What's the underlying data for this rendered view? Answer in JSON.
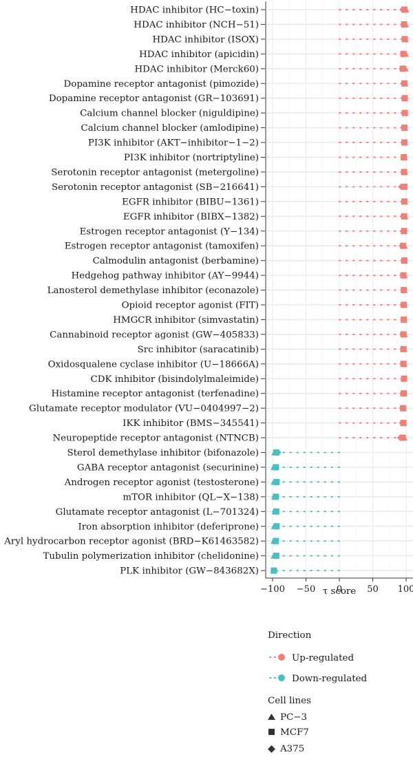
{
  "chart_data": {
    "type": "scatter",
    "title": "",
    "xlabel": "τ score",
    "ylabel": "",
    "xlim": [
      -110,
      105
    ],
    "xticks": [
      -100,
      -50,
      0,
      50,
      100
    ],
    "xtick_labels": [
      "−100",
      "−50",
      "0",
      "50",
      "100"
    ],
    "grid": true,
    "orientation": "horizontal dot/lollipop",
    "categories": [
      "HDAC inhibitor (HC−toxin)",
      "HDAC inhibitor (NCH−51)",
      "HDAC inhibitor (ISOX)",
      "HDAC inhibitor (apicidin)",
      "HDAC inhibitor (Merck60)",
      "Dopamine receptor antagonist (pimozide)",
      "Dopamine receptor antagonist (GR−103691)",
      "Calcium channel blocker (niguldipine)",
      "Calcium channel blocker (amlodipine)",
      "PI3K inhibitor (AKT−inhibitor−1−2)",
      "PI3K inhibitor (nortriptyline)",
      "Serotonin receptor antagonist (metergoline)",
      "Serotonin receptor antagonist (SB−216641)",
      "EGFR inhibitor (BIBU−1361)",
      "EGFR inhibitor (BIBX−1382)",
      "Estrogen receptor antagonist (Y−134)",
      "Estrogen receptor antagonist (tamoxifen)",
      "Calmodulin antagonist (berbamine)",
      "Hedgehog pathway inhibitor (AY−9944)",
      "Lanosterol demethylase inhibitor (econazole)",
      "Opioid receptor agonist (FIT)",
      "HMGCR inhibitor (simvastatin)",
      "Cannabinoid receptor agonist (GW−405833)",
      "Src inhibitor (saracatinib)",
      "Oxidosqualene cyclase inhibitor (U−18666A)",
      "CDK inhibitor (bisindolylmaleimide)",
      "Histamine receptor antagonist (terfenadine)",
      "Glutamate receptor modulator (VU−0404997−2)",
      "IKK inhibitor (BMS−345541)",
      "Neuropeptide receptor antagonist (NTNCB)",
      "Sterol demethylase inhibitor (bifonazole)",
      "GABA receptor antagonist (securinine)",
      "Androgen receptor agonist (testosterone)",
      "mTOR inhibitor (QL−X−138)",
      "Glutamate receptor antagonist (L−701324)",
      "Iron absorption inhibitor (deferiprone)",
      "Aryl hydrocarbon receptor agonist (BRD−K61463582)",
      "Tubulin polymerization inhibitor (chelidonine)",
      "PLK inhibitor (GW−843682X)"
    ],
    "direction": [
      "Up",
      "Up",
      "Up",
      "Up",
      "Up",
      "Up",
      "Up",
      "Up",
      "Up",
      "Up",
      "Up",
      "Up",
      "Up",
      "Up",
      "Up",
      "Up",
      "Up",
      "Up",
      "Up",
      "Up",
      "Up",
      "Up",
      "Up",
      "Up",
      "Up",
      "Up",
      "Up",
      "Up",
      "Up",
      "Up",
      "Down",
      "Down",
      "Down",
      "Down",
      "Down",
      "Down",
      "Down",
      "Down",
      "Down"
    ],
    "series": [
      {
        "name": "PC−3",
        "shape": "triangle",
        "values": [
          99.8,
          99.5,
          99.0,
          99.3,
          99.0,
          98.5,
          98.0,
          98.5,
          98.0,
          98.0,
          97.5,
          98.0,
          96.5,
          98.0,
          98.5,
          96.5,
          97.5,
          97.0,
          97.5,
          97.0,
          97.0,
          96.5,
          97.5,
          97.0,
          97.0,
          96.5,
          95.5,
          96.0,
          95.5,
          97.0,
          -97.0,
          -98.0,
          -98.0,
          -97.0,
          -96.5,
          -97.5,
          -98.0,
          -98.0,
          -98.5
        ]
      },
      {
        "name": "MCF7",
        "shape": "square",
        "values": [
          97.5,
          97.0,
          98.0,
          96.0,
          95.0,
          97.5,
          98.0,
          98.0,
          97.5,
          97.5,
          96.5,
          97.0,
          97.5,
          97.5,
          97.0,
          97.0,
          95.5,
          97.5,
          96.0,
          96.5,
          96.5,
          96.5,
          96.0,
          96.0,
          96.0,
          97.0,
          96.5,
          95.5,
          96.0,
          95.0,
          -94.5,
          -95.0,
          -94.0,
          -95.0,
          -94.5,
          -94.0,
          -95.0,
          -94.5,
          -98.0
        ]
      },
      {
        "name": "A375",
        "shape": "diamond",
        "values": [
          95.0,
          96.0,
          96.5,
          95.5,
          94.0,
          96.0,
          96.5,
          96.5,
          96.0,
          96.5,
          97.0,
          96.0,
          93.0,
          96.0,
          95.5,
          95.5,
          94.0,
          96.0,
          95.0,
          96.0,
          95.5,
          96.0,
          95.0,
          95.5,
          95.0,
          96.0,
          95.0,
          94.5,
          94.5,
          91.5,
          -92.0,
          -96.5,
          -96.0,
          -96.5,
          -96.0,
          -95.5,
          -96.5,
          -96.0,
          -97.0
        ]
      }
    ]
  },
  "legend": {
    "direction_title": "Direction",
    "up_label": "Up-regulated",
    "down_label": "Down-regulated",
    "cell_title": "Cell lines",
    "cell_items": [
      "PC−3",
      "MCF7",
      "A375"
    ]
  },
  "colors": {
    "up": "#F07F76",
    "down": "#49BFC1",
    "grid": "#EBEBEB",
    "axis": "#333333"
  }
}
